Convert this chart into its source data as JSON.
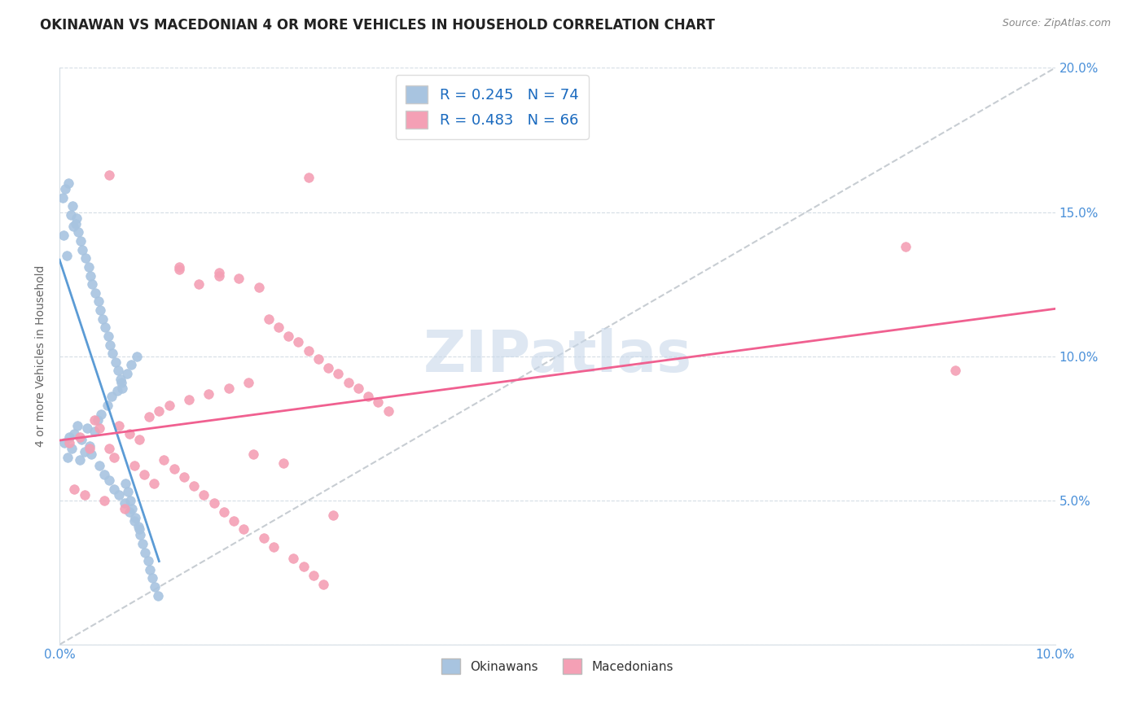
{
  "title": "OKINAWAN VS MACEDONIAN 4 OR MORE VEHICLES IN HOUSEHOLD CORRELATION CHART",
  "source": "Source: ZipAtlas.com",
  "ylabel": "4 or more Vehicles in Household",
  "legend_bottom": [
    "Okinawans",
    "Macedonians"
  ],
  "okinawan_R": 0.245,
  "okinawan_N": 74,
  "macedonian_R": 0.483,
  "macedonian_N": 66,
  "xlim": [
    0.0,
    0.1
  ],
  "ylim": [
    0.0,
    0.2
  ],
  "xticks": [
    0.0,
    0.02,
    0.04,
    0.06,
    0.08,
    0.1
  ],
  "yticks": [
    0.0,
    0.05,
    0.1,
    0.15,
    0.2
  ],
  "okinawan_color": "#a8c4e0",
  "macedonian_color": "#f4a0b5",
  "okinawan_line_color": "#5b9bd5",
  "macedonian_line_color": "#f06090",
  "diagonal_color": "#b0b8c0",
  "watermark_color": "#c8d8ea",
  "watermark": "ZIPatlas",
  "background_color": "#ffffff",
  "okinawan_scatter_x": [
    0.0005,
    0.0008,
    0.001,
    0.0012,
    0.0015,
    0.0018,
    0.002,
    0.0022,
    0.0025,
    0.0028,
    0.003,
    0.0032,
    0.0035,
    0.0038,
    0.004,
    0.0042,
    0.0045,
    0.0048,
    0.005,
    0.0052,
    0.0055,
    0.0058,
    0.006,
    0.0062,
    0.0065,
    0.0068,
    0.007,
    0.0072,
    0.0075,
    0.0078,
    0.008,
    0.0003,
    0.0006,
    0.0009,
    0.0011,
    0.0013,
    0.0016,
    0.0019,
    0.0021,
    0.0023,
    0.0026,
    0.0029,
    0.0031,
    0.0033,
    0.0036,
    0.0039,
    0.0041,
    0.0043,
    0.0046,
    0.0049,
    0.0051,
    0.0053,
    0.0056,
    0.0059,
    0.0061,
    0.0063,
    0.0066,
    0.0069,
    0.0071,
    0.0073,
    0.0076,
    0.0079,
    0.0081,
    0.0083,
    0.0086,
    0.0089,
    0.0091,
    0.0093,
    0.0096,
    0.0099,
    0.0004,
    0.0007,
    0.0014,
    0.0017
  ],
  "okinawan_scatter_y": [
    0.07,
    0.065,
    0.072,
    0.068,
    0.073,
    0.076,
    0.064,
    0.071,
    0.067,
    0.075,
    0.069,
    0.066,
    0.074,
    0.078,
    0.062,
    0.08,
    0.059,
    0.083,
    0.057,
    0.086,
    0.054,
    0.088,
    0.052,
    0.091,
    0.049,
    0.094,
    0.046,
    0.097,
    0.043,
    0.1,
    0.04,
    0.155,
    0.158,
    0.16,
    0.149,
    0.152,
    0.146,
    0.143,
    0.14,
    0.137,
    0.134,
    0.131,
    0.128,
    0.125,
    0.122,
    0.119,
    0.116,
    0.113,
    0.11,
    0.107,
    0.104,
    0.101,
    0.098,
    0.095,
    0.092,
    0.089,
    0.056,
    0.053,
    0.05,
    0.047,
    0.044,
    0.041,
    0.038,
    0.035,
    0.032,
    0.029,
    0.026,
    0.023,
    0.02,
    0.017,
    0.142,
    0.135,
    0.145,
    0.148
  ],
  "macedonian_scatter_x": [
    0.001,
    0.002,
    0.003,
    0.004,
    0.005,
    0.006,
    0.007,
    0.008,
    0.009,
    0.01,
    0.011,
    0.012,
    0.013,
    0.014,
    0.015,
    0.016,
    0.017,
    0.018,
    0.019,
    0.02,
    0.021,
    0.022,
    0.023,
    0.024,
    0.025,
    0.026,
    0.027,
    0.028,
    0.029,
    0.03,
    0.031,
    0.032,
    0.033,
    0.0015,
    0.0025,
    0.0035,
    0.0045,
    0.0055,
    0.0065,
    0.0075,
    0.0085,
    0.0095,
    0.0105,
    0.0115,
    0.0125,
    0.0135,
    0.0145,
    0.0155,
    0.0165,
    0.0175,
    0.0185,
    0.0195,
    0.0205,
    0.0215,
    0.0225,
    0.0235,
    0.0245,
    0.0255,
    0.0265,
    0.0275,
    0.085,
    0.09,
    0.025,
    0.016,
    0.005,
    0.012
  ],
  "macedonian_scatter_y": [
    0.07,
    0.072,
    0.068,
    0.075,
    0.163,
    0.076,
    0.073,
    0.071,
    0.079,
    0.081,
    0.083,
    0.13,
    0.085,
    0.125,
    0.087,
    0.128,
    0.089,
    0.127,
    0.091,
    0.124,
    0.113,
    0.11,
    0.107,
    0.105,
    0.102,
    0.099,
    0.096,
    0.094,
    0.091,
    0.089,
    0.086,
    0.084,
    0.081,
    0.054,
    0.052,
    0.078,
    0.05,
    0.065,
    0.047,
    0.062,
    0.059,
    0.056,
    0.064,
    0.061,
    0.058,
    0.055,
    0.052,
    0.049,
    0.046,
    0.043,
    0.04,
    0.066,
    0.037,
    0.034,
    0.063,
    0.03,
    0.027,
    0.024,
    0.021,
    0.045,
    0.138,
    0.095,
    0.162,
    0.129,
    0.068,
    0.131
  ]
}
